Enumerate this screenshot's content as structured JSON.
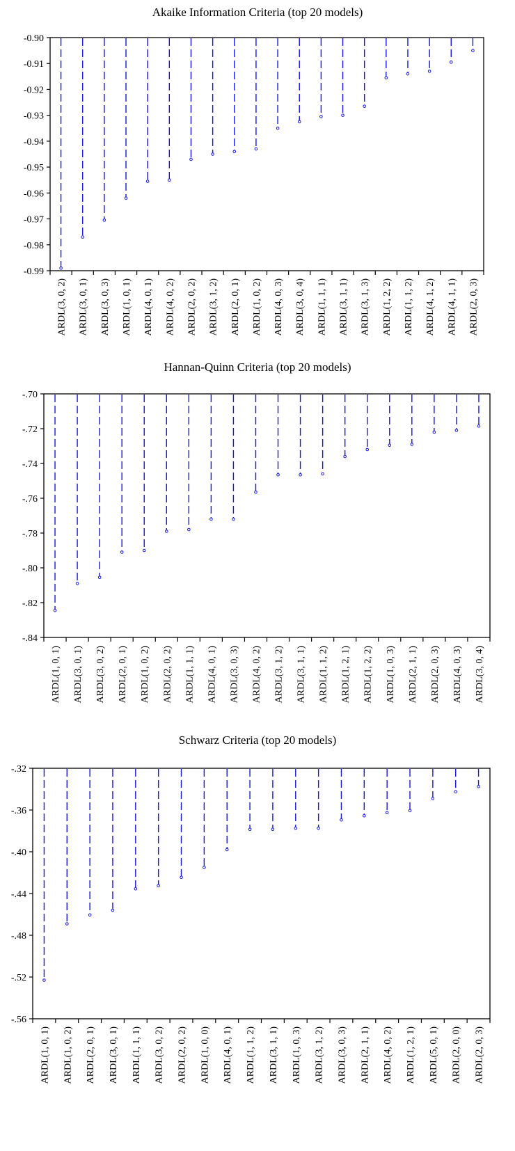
{
  "chart_data": [
    {
      "type": "dropline",
      "title": "Akaike Information Criteria (top 20 models)",
      "xlabel": "",
      "ylabel": "",
      "ylim": [
        -0.99,
        -0.9
      ],
      "yticks": [
        -0.9,
        -0.91,
        -0.92,
        -0.93,
        -0.94,
        -0.95,
        -0.96,
        -0.97,
        -0.98,
        -0.99
      ],
      "yticklabels": [
        "-0.90",
        "-0.91",
        "-0.92",
        "-0.93",
        "-0.94",
        "-0.95",
        "-0.96",
        "-0.97",
        "-0.98",
        "-0.99"
      ],
      "grid": false,
      "color": "#1414e6",
      "categories": [
        "ARDL(3, 0, 2)",
        "ARDL(3, 0, 1)",
        "ARDL(3, 0, 3)",
        "ARDL(1, 0, 1)",
        "ARDL(4, 0, 1)",
        "ARDL(4, 0, 2)",
        "ARDL(2, 0, 2)",
        "ARDL(3, 1, 2)",
        "ARDL(2, 0, 1)",
        "ARDL(1, 0, 2)",
        "ARDL(4, 0, 3)",
        "ARDL(3, 0, 4)",
        "ARDL(1, 1, 1)",
        "ARDL(3, 1, 1)",
        "ARDL(3, 1, 3)",
        "ARDL(1, 2, 2)",
        "ARDL(1, 1, 2)",
        "ARDL(4, 1, 2)",
        "ARDL(4, 1, 1)",
        "ARDL(2, 0, 3)"
      ],
      "values": [
        -0.989,
        -0.977,
        -0.9705,
        -0.962,
        -0.9555,
        -0.955,
        -0.947,
        -0.945,
        -0.944,
        -0.943,
        -0.935,
        -0.9325,
        -0.9305,
        -0.93,
        -0.9265,
        -0.9155,
        -0.914,
        -0.913,
        -0.9095,
        -0.905
      ]
    },
    {
      "type": "dropline",
      "title": "Hannan-Quinn Criteria (top 20 models)",
      "xlabel": "",
      "ylabel": "",
      "ylim": [
        -0.84,
        -0.7
      ],
      "yticks": [
        -0.7,
        -0.72,
        -0.74,
        -0.76,
        -0.78,
        -0.8,
        -0.82,
        -0.84
      ],
      "yticklabels": [
        "-.70",
        "-.72",
        "-.74",
        "-.76",
        "-.78",
        "-.80",
        "-.82",
        "-.84"
      ],
      "grid": false,
      "color": "#1414e6",
      "categories": [
        "ARDL(1, 0, 1)",
        "ARDL(3, 0, 1)",
        "ARDL(3, 0, 2)",
        "ARDL(2, 0, 1)",
        "ARDL(1, 0, 2)",
        "ARDL(2, 0, 2)",
        "ARDL(1, 1, 1)",
        "ARDL(4, 0, 1)",
        "ARDL(3, 0, 3)",
        "ARDL(4, 0, 2)",
        "ARDL(3, 1, 2)",
        "ARDL(3, 1, 1)",
        "ARDL(1, 1, 2)",
        "ARDL(1, 2, 1)",
        "ARDL(1, 2, 2)",
        "ARDL(1, 0, 3)",
        "ARDL(2, 1, 1)",
        "ARDL(2, 0, 3)",
        "ARDL(4, 0, 3)",
        "ARDL(3, 0, 4)"
      ],
      "values": [
        -0.8245,
        -0.809,
        -0.8055,
        -0.791,
        -0.79,
        -0.779,
        -0.778,
        -0.772,
        -0.772,
        -0.7565,
        -0.7465,
        -0.7465,
        -0.746,
        -0.736,
        -0.732,
        -0.7295,
        -0.729,
        -0.722,
        -0.721,
        -0.7185
      ]
    },
    {
      "type": "dropline",
      "title": "Schwarz Criteria (top 20 models)",
      "xlabel": "",
      "ylabel": "",
      "ylim": [
        -0.56,
        -0.32
      ],
      "yticks": [
        -0.32,
        -0.36,
        -0.4,
        -0.44,
        -0.48,
        -0.52,
        -0.56
      ],
      "yticklabels": [
        "-.32",
        "-.36",
        "-.40",
        "-.44",
        "-.48",
        "-.52",
        "-.56"
      ],
      "grid": false,
      "color": "#1414e6",
      "categories": [
        "ARDL(1, 0, 1)",
        "ARDL(1, 0, 2)",
        "ARDL(2, 0, 1)",
        "ARDL(3, 0, 1)",
        "ARDL(1, 1, 1)",
        "ARDL(3, 0, 2)",
        "ARDL(2, 0, 2)",
        "ARDL(1, 0, 0)",
        "ARDL(4, 0, 1)",
        "ARDL(1, 1, 2)",
        "ARDL(3, 1, 1)",
        "ARDL(1, 0, 3)",
        "ARDL(3, 1, 2)",
        "ARDL(3, 0, 3)",
        "ARDL(2, 1, 1)",
        "ARDL(4, 0, 2)",
        "ARDL(1, 2, 1)",
        "ARDL(5, 0, 1)",
        "ARDL(2, 0, 0)",
        "ARDL(2, 0, 3)"
      ],
      "values": [
        -0.523,
        -0.469,
        -0.4605,
        -0.456,
        -0.4355,
        -0.4325,
        -0.4245,
        -0.415,
        -0.398,
        -0.3785,
        -0.3785,
        -0.3775,
        -0.3775,
        -0.3695,
        -0.3655,
        -0.3625,
        -0.3605,
        -0.349,
        -0.3425,
        -0.3375
      ]
    }
  ]
}
